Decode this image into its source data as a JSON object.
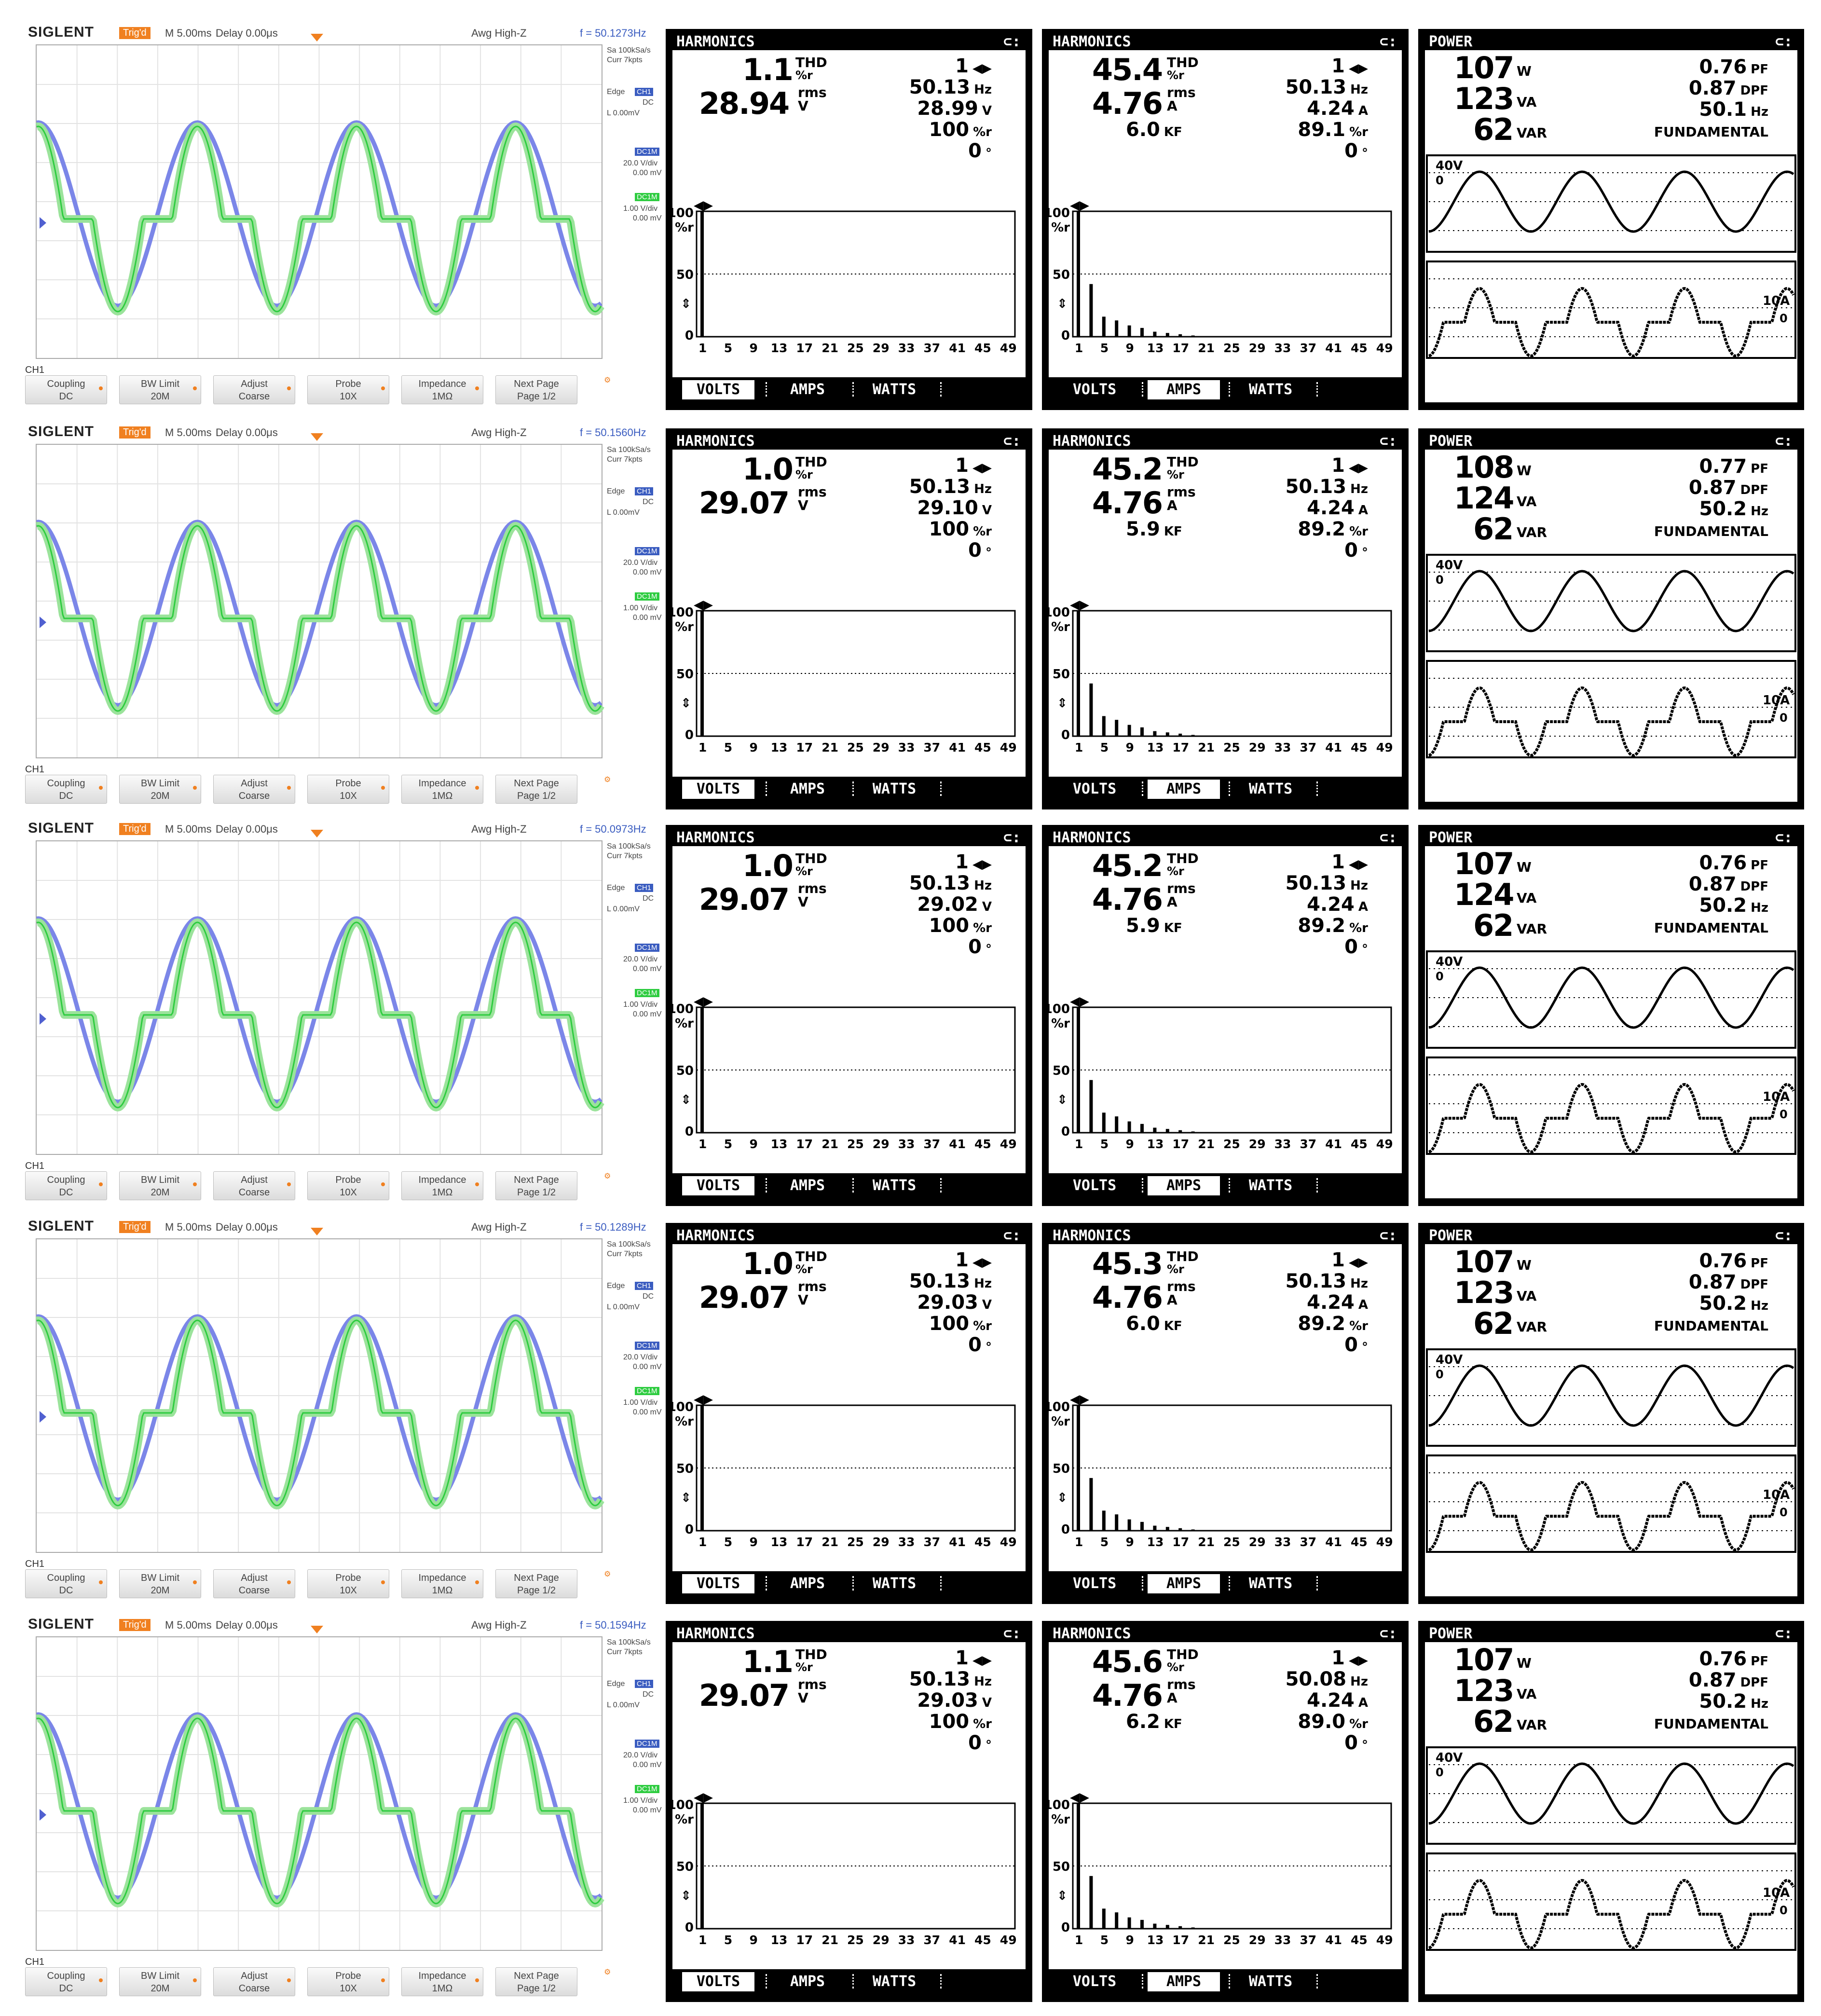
{
  "scope_common": {
    "brand": "SIGLENT",
    "trig": "Trig'd",
    "timebase": "M 5.00ms",
    "delay": "Delay 0.00μs",
    "awg": "Awg High-Z",
    "sa": "Sa 100kSa/s",
    "curr": "Curr 7kpts",
    "edge": "Edge",
    "edge_ch": "CH1",
    "dc": "DC",
    "level": "L  0.00mV",
    "ch1_badge": "DC1M",
    "ch1_scale": "20.0 V/div",
    "ch1_offset": "0.00 mV",
    "ch2_badge": "DC1M",
    "ch2_scale": "1.00 V/div",
    "ch2_offset": "0.00 mV",
    "ch_label": "CH1",
    "menu": [
      {
        "l1": "Coupling",
        "l2": "DC"
      },
      {
        "l1": "BW Limit",
        "l2": "20M"
      },
      {
        "l1": "Adjust",
        "l2": "Coarse"
      },
      {
        "l1": "Probe",
        "l2": "10X"
      },
      {
        "l1": "Impedance",
        "l2": "1MΩ"
      },
      {
        "l1": "Next Page",
        "l2": "Page 1/2"
      }
    ],
    "ch1_color": "#7b86e8",
    "ch2_color": "#9be39b",
    "ch2_flat_color": "#2ecc40"
  },
  "meter_common": {
    "harmonics_title": "HARMONICS",
    "power_title": "POWER",
    "thd": "THD",
    "pct_r": "%r",
    "rms": "rms",
    "unit_v": "V",
    "unit_a": "A",
    "unit_hz": "Hz",
    "unit_kf": "KF",
    "unit_deg": "°",
    "unit_w": "W",
    "unit_va": "VA",
    "unit_var": "VAR",
    "unit_pf": "PF",
    "unit_dpf": "DPF",
    "fundamental": "FUNDAMENTAL",
    "bar_y_top": "100",
    "bar_y_mid": "50",
    "bar_y_zero": "0",
    "bar_y_unit": "%r",
    "bar_x_ticks": [
      "1",
      "5",
      "9",
      "13",
      "17",
      "21",
      "25",
      "29",
      "33",
      "37",
      "41",
      "45",
      "49"
    ],
    "tabs": [
      "VOLTS",
      "AMPS",
      "WATTS"
    ],
    "wave_v_scale": "40V",
    "wave_a_scale": "10A",
    "wave_zero": "0",
    "harm_order": "1"
  },
  "rows": [
    {
      "freq": "f = 50.1273Hz",
      "volts": {
        "thd": "1.1",
        "rms": "28.94",
        "hz": "50.13",
        "v1": "28.99",
        "pct": "100",
        "deg": "0"
      },
      "amps": {
        "thd": "45.4",
        "rms": "4.76",
        "kf": "6.0",
        "hz": "50.13",
        "a1": "4.24",
        "pct": "89.1",
        "deg": "0"
      },
      "power": {
        "w": "107",
        "va": "123",
        "var": "62",
        "pf": "0.76",
        "dpf": "0.87",
        "hz": "50.1"
      },
      "selected_tab_volts": 0,
      "selected_tab_amps": 1
    },
    {
      "freq": "f = 50.1560Hz",
      "volts": {
        "thd": "1.0",
        "rms": "29.07",
        "hz": "50.13",
        "v1": "29.10",
        "pct": "100",
        "deg": "0"
      },
      "amps": {
        "thd": "45.2",
        "rms": "4.76",
        "kf": "5.9",
        "hz": "50.13",
        "a1": "4.24",
        "pct": "89.2",
        "deg": "0"
      },
      "power": {
        "w": "108",
        "va": "124",
        "var": "62",
        "pf": "0.77",
        "dpf": "0.87",
        "hz": "50.2"
      },
      "selected_tab_volts": 0,
      "selected_tab_amps": 1
    },
    {
      "freq": "f = 50.0973Hz",
      "volts": {
        "thd": "1.0",
        "rms": "29.07",
        "hz": "50.13",
        "v1": "29.02",
        "pct": "100",
        "deg": "0"
      },
      "amps": {
        "thd": "45.2",
        "rms": "4.76",
        "kf": "5.9",
        "hz": "50.13",
        "a1": "4.24",
        "pct": "89.2",
        "deg": "0"
      },
      "power": {
        "w": "107",
        "va": "124",
        "var": "62",
        "pf": "0.76",
        "dpf": "0.87",
        "hz": "50.2"
      },
      "selected_tab_volts": 0,
      "selected_tab_amps": 1
    },
    {
      "freq": "f = 50.1289Hz",
      "volts": {
        "thd": "1.0",
        "rms": "29.07",
        "hz": "50.13",
        "v1": "29.03",
        "pct": "100",
        "deg": "0"
      },
      "amps": {
        "thd": "45.3",
        "rms": "4.76",
        "kf": "6.0",
        "hz": "50.13",
        "a1": "4.24",
        "pct": "89.2",
        "deg": "0"
      },
      "power": {
        "w": "107",
        "va": "123",
        "var": "62",
        "pf": "0.76",
        "dpf": "0.87",
        "hz": "50.2"
      },
      "selected_tab_volts": 0,
      "selected_tab_amps": 1
    },
    {
      "freq": "f = 50.1594Hz",
      "volts": {
        "thd": "1.1",
        "rms": "29.07",
        "hz": "50.13",
        "v1": "29.03",
        "pct": "100",
        "deg": "0"
      },
      "amps": {
        "thd": "45.6",
        "rms": "4.76",
        "kf": "6.2",
        "hz": "50.08",
        "a1": "4.24",
        "pct": "89.0",
        "deg": "0"
      },
      "power": {
        "w": "107",
        "va": "123",
        "var": "62",
        "pf": "0.76",
        "dpf": "0.87",
        "hz": "50.2"
      },
      "selected_tab_volts": 0,
      "selected_tab_amps": 1
    }
  ],
  "harmonic_spectrum": {
    "volts_pct": [
      100
    ],
    "amps_orders": [
      1,
      3,
      5,
      7,
      9,
      11,
      13,
      15,
      17,
      19
    ],
    "amps_pct": [
      100,
      42,
      16,
      13,
      9,
      7,
      4,
      3,
      2,
      1
    ]
  }
}
